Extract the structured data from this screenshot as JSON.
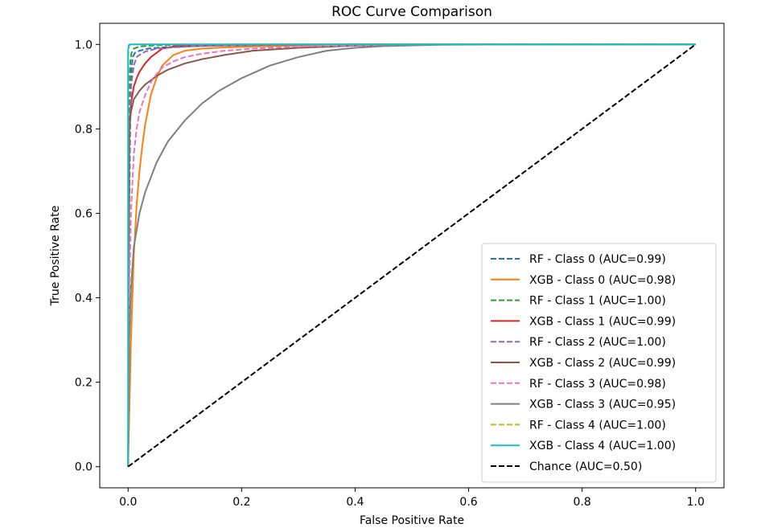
{
  "chart_data": {
    "type": "line",
    "title": "ROC Curve Comparison",
    "xlabel": "False Positive Rate",
    "ylabel": "True Positive Rate",
    "xlim": [
      -0.05,
      1.05
    ],
    "ylim": [
      -0.05,
      1.05
    ],
    "xticks": [
      0.0,
      0.2,
      0.4,
      0.6,
      0.8,
      1.0
    ],
    "yticks": [
      0.0,
      0.2,
      0.4,
      0.6,
      0.8,
      1.0
    ],
    "xtick_labels": [
      "0.0",
      "0.2",
      "0.4",
      "0.6",
      "0.8",
      "1.0"
    ],
    "ytick_labels": [
      "0.0",
      "0.2",
      "0.4",
      "0.6",
      "0.8",
      "1.0"
    ],
    "grid": false,
    "legend_position": "lower-right",
    "series": [
      {
        "name": "RF - Class 0 (AUC=0.99)",
        "color": "#1f77b4",
        "dashed": true,
        "x": [
          0.0,
          0.002,
          0.004,
          0.006,
          0.008,
          0.012,
          0.02,
          0.035,
          0.06,
          0.1,
          0.15,
          0.25,
          0.4,
          0.6,
          1.0
        ],
        "y": [
          0.0,
          0.6,
          0.85,
          0.94,
          0.97,
          0.98,
          0.985,
          0.99,
          0.993,
          0.995,
          0.997,
          0.998,
          0.999,
          1.0,
          1.0
        ]
      },
      {
        "name": "XGB - Class 0 (AUC=0.98)",
        "color": "#ff7f0e",
        "dashed": false,
        "x": [
          0.0,
          0.005,
          0.01,
          0.015,
          0.02,
          0.025,
          0.03,
          0.04,
          0.05,
          0.06,
          0.08,
          0.1,
          0.13,
          0.17,
          0.22,
          0.3,
          0.4,
          0.6,
          1.0
        ],
        "y": [
          0.0,
          0.3,
          0.5,
          0.62,
          0.7,
          0.76,
          0.81,
          0.88,
          0.92,
          0.95,
          0.975,
          0.985,
          0.99,
          0.993,
          0.995,
          0.997,
          0.999,
          1.0,
          1.0
        ]
      },
      {
        "name": "RF - Class 1 (AUC=1.00)",
        "color": "#2ca02c",
        "dashed": true,
        "x": [
          0.0,
          0.001,
          0.002,
          0.003,
          0.004,
          0.006,
          0.01,
          0.02,
          0.05,
          0.2,
          1.0
        ],
        "y": [
          0.0,
          0.6,
          0.85,
          0.93,
          0.96,
          0.98,
          0.99,
          0.995,
          0.998,
          1.0,
          1.0
        ]
      },
      {
        "name": "XGB - Class 1 (AUC=0.99)",
        "color": "#d62728",
        "dashed": false,
        "x": [
          0.0,
          0.002,
          0.005,
          0.01,
          0.015,
          0.02,
          0.03,
          0.04,
          0.05,
          0.06,
          0.08,
          0.1,
          0.15,
          0.25,
          0.4,
          1.0
        ],
        "y": [
          0.0,
          0.8,
          0.86,
          0.9,
          0.92,
          0.935,
          0.955,
          0.97,
          0.98,
          0.99,
          0.995,
          0.997,
          0.998,
          0.999,
          1.0,
          1.0
        ]
      },
      {
        "name": "RF - Class 2 (AUC=1.00)",
        "color": "#9467bd",
        "dashed": true,
        "x": [
          0.0,
          0.002,
          0.005,
          0.01,
          0.015,
          0.02,
          0.03,
          0.05,
          0.08,
          0.12,
          0.2,
          0.4,
          1.0
        ],
        "y": [
          0.0,
          0.7,
          0.9,
          0.95,
          0.97,
          0.975,
          0.983,
          0.99,
          0.993,
          0.996,
          0.998,
          1.0,
          1.0
        ]
      },
      {
        "name": "XGB - Class 2 (AUC=0.99)",
        "color": "#8c564b",
        "dashed": false,
        "x": [
          0.0,
          0.002,
          0.005,
          0.01,
          0.02,
          0.03,
          0.04,
          0.05,
          0.07,
          0.1,
          0.13,
          0.17,
          0.22,
          0.3,
          0.4,
          0.5,
          1.0
        ],
        "y": [
          0.0,
          0.8,
          0.84,
          0.87,
          0.89,
          0.905,
          0.915,
          0.925,
          0.94,
          0.955,
          0.965,
          0.975,
          0.985,
          0.992,
          0.997,
          1.0,
          1.0
        ]
      },
      {
        "name": "RF - Class 3 (AUC=0.98)",
        "color": "#e377c2",
        "dashed": true,
        "x": [
          0.0,
          0.002,
          0.005,
          0.01,
          0.015,
          0.02,
          0.03,
          0.04,
          0.05,
          0.06,
          0.08,
          0.1,
          0.13,
          0.17,
          0.22,
          0.3,
          0.4,
          0.5,
          1.0
        ],
        "y": [
          0.0,
          0.4,
          0.6,
          0.74,
          0.8,
          0.84,
          0.88,
          0.91,
          0.93,
          0.945,
          0.96,
          0.97,
          0.978,
          0.985,
          0.99,
          0.995,
          0.998,
          1.0,
          1.0
        ]
      },
      {
        "name": "XGB - Class 3 (AUC=0.95)",
        "color": "#7f7f7f",
        "dashed": false,
        "x": [
          0.0,
          0.002,
          0.005,
          0.01,
          0.02,
          0.03,
          0.05,
          0.07,
          0.1,
          0.13,
          0.16,
          0.2,
          0.25,
          0.3,
          0.35,
          0.4,
          0.45,
          0.55,
          0.7,
          1.0
        ],
        "y": [
          0.0,
          0.3,
          0.42,
          0.52,
          0.6,
          0.65,
          0.72,
          0.77,
          0.82,
          0.86,
          0.89,
          0.92,
          0.95,
          0.97,
          0.985,
          0.992,
          0.996,
          0.999,
          1.0,
          1.0
        ]
      },
      {
        "name": "RF - Class 4 (AUC=1.00)",
        "color": "#bcbd22",
        "dashed": true,
        "x": [
          0.0,
          0.0,
          0.001,
          0.003,
          0.01,
          1.0
        ],
        "y": [
          0.0,
          0.97,
          0.995,
          0.999,
          1.0,
          1.0
        ]
      },
      {
        "name": "XGB - Class 4 (AUC=1.00)",
        "color": "#17becf",
        "dashed": false,
        "x": [
          0.0,
          0.0,
          0.001,
          0.003,
          0.01,
          1.0
        ],
        "y": [
          0.0,
          0.985,
          0.998,
          1.0,
          1.0,
          1.0
        ]
      },
      {
        "name": "Chance (AUC=0.50)",
        "color": "#000000",
        "dashed": true,
        "x": [
          0.0,
          1.0
        ],
        "y": [
          0.0,
          1.0
        ]
      }
    ]
  }
}
